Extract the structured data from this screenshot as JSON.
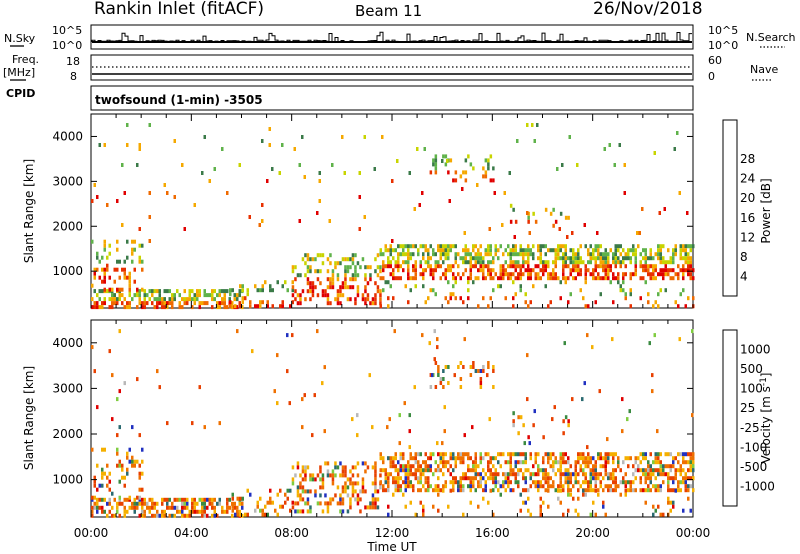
{
  "header": {
    "station": "Rankin Inlet (fitACF)",
    "beam": "Beam 11",
    "date": "26/Nov/2018"
  },
  "left_labels": {
    "nsky": "N.Sky",
    "freq": "Freq.",
    "mhz": "[MHz]",
    "cpid": "CPID"
  },
  "right_labels": {
    "nsearch": "N.Search",
    "nave": "Nave"
  },
  "small_panels": {
    "nsky_ticks": [
      "10^5",
      "10^0"
    ],
    "freq_ticks": [
      "18",
      "8"
    ],
    "nsearch_ticks": [
      "10^5",
      "10^0"
    ],
    "nave_ticks": [
      "60",
      "0"
    ]
  },
  "mode_label": "twofsound (1-min) -3505",
  "colors": {
    "power": [
      "#0000ff",
      "#2a4fa0",
      "#3a7a48",
      "#5fb24a",
      "#c8d400",
      "#f5a800",
      "#ef6a00",
      "#e83000",
      "#e00000"
    ],
    "velocity": [
      "#2030c0",
      "#2a6a70",
      "#3a8a40",
      "#80cc40",
      "#b8b8b8",
      "#f5b000",
      "#ef7000",
      "#e84000",
      "#e00000"
    ]
  },
  "chart_data": [
    {
      "type": "heatmap",
      "xlabel": "",
      "ylabel": "Slant Range [km]",
      "x_ticks": [
        "00:00",
        "04:00",
        "08:00",
        "12:00",
        "16:00",
        "20:00",
        "00:00"
      ],
      "y_ticks": [
        "1000",
        "2000",
        "3000",
        "4000"
      ],
      "xlim": [
        0,
        24
      ],
      "ylim": [
        180,
        4500
      ],
      "colorbar": {
        "label": "Power [dB]",
        "ticks": [
          "4",
          "8",
          "12",
          "16",
          "20",
          "24",
          "28"
        ],
        "range": [
          0,
          30
        ]
      }
    },
    {
      "type": "heatmap",
      "xlabel": "Time UT",
      "ylabel": "Slant Range [km]",
      "x_ticks": [
        "00:00",
        "04:00",
        "08:00",
        "12:00",
        "16:00",
        "20:00",
        "00:00"
      ],
      "y_ticks": [
        "1000",
        "2000",
        "3000",
        "4000"
      ],
      "xlim": [
        0,
        24
      ],
      "ylim": [
        180,
        4500
      ],
      "colorbar": {
        "label": "Velocity [m s^-1]",
        "ticks": [
          "1000",
          "500",
          "100",
          "25",
          "-25",
          "-100",
          "-500",
          "-1000"
        ]
      }
    }
  ]
}
